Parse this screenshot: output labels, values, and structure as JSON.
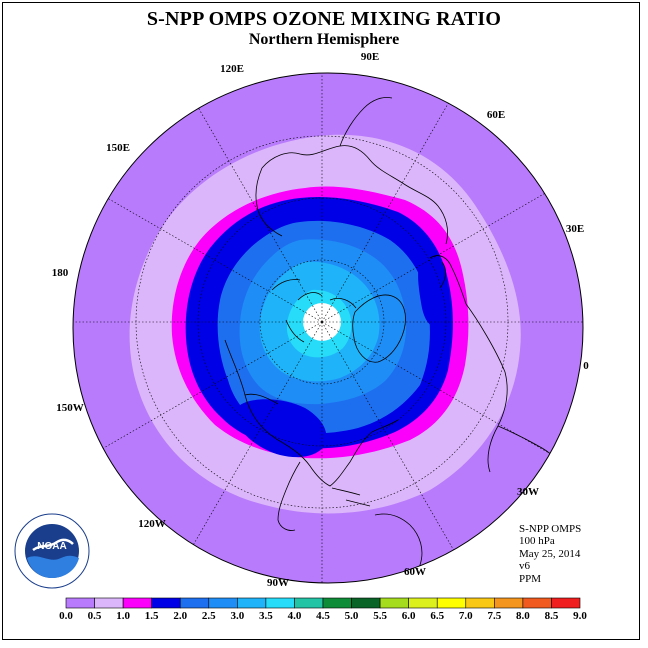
{
  "title": "S-NPP OMPS OZONE MIXING RATIO",
  "subtitle": "Northern Hemisphere",
  "info": {
    "instrument": "S-NPP OMPS",
    "level": "100 hPa",
    "date": "May 25, 2014",
    "version": "v6",
    "units": "PPM"
  },
  "logo": {
    "name": "noaa-logo",
    "text": "NOAA",
    "ring_text": "NATIONAL OCEANIC AND ATMOSPHERIC ADMINISTRATION · U.S. DEPARTMENT OF COMMERCE"
  },
  "longitude_labels": [
    {
      "text": "90E"
    },
    {
      "text": "60E"
    },
    {
      "text": "30E"
    },
    {
      "text": "0"
    },
    {
      "text": "30W"
    },
    {
      "text": "60W"
    },
    {
      "text": "90W"
    },
    {
      "text": "120W"
    },
    {
      "text": "150W"
    },
    {
      "text": "180"
    },
    {
      "text": "150E"
    },
    {
      "text": "120E"
    }
  ],
  "colorbar": {
    "labels": [
      "0.0",
      "0.5",
      "1.0",
      "1.5",
      "2.0",
      "2.5",
      "3.0",
      "3.5",
      "4.0",
      "4.5",
      "5.0",
      "5.5",
      "6.0",
      "6.5",
      "7.0",
      "7.5",
      "8.0",
      "8.5",
      "9.0"
    ],
    "colors": [
      "#b87bfb",
      "#dcb6fb",
      "#fb00fb",
      "#0000e6",
      "#1e6ff0",
      "#1e8ef6",
      "#1fb4f9",
      "#26dcf8",
      "#23c3a5",
      "#0f8c38",
      "#0a6428",
      "#a6dc1e",
      "#dcf01e",
      "#ffff00",
      "#f8c814",
      "#f4961e",
      "#f05a1e",
      "#f01e1e",
      "#8c5a3c"
    ]
  },
  "colors": {
    "background": "#ffffff",
    "no_data": "#ffffff",
    "coastline": "#000000"
  }
}
